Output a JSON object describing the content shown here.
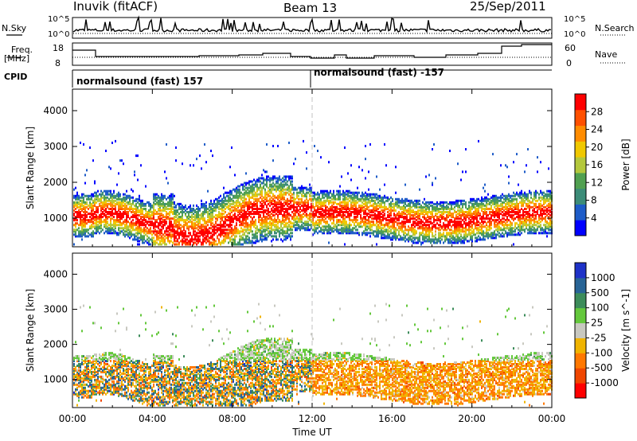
{
  "header": {
    "station": "Inuvik (fitACF)",
    "beam": "Beam 13",
    "date": "25/Sep/2011"
  },
  "panels": {
    "nsky": {
      "left_label": "N.Sky",
      "right_label": "N.Search",
      "left_ticks": [
        "10^5",
        "10^0"
      ],
      "right_ticks": [
        "10^5",
        "10^0"
      ]
    },
    "freq": {
      "left_label_1": "Freq.",
      "left_label_2": "[MHz]",
      "right_label": "Nave",
      "left_ticks": [
        "18",
        "8"
      ],
      "right_ticks": [
        "60",
        "0"
      ]
    },
    "cpid": {
      "label": "CPID",
      "segments": [
        "normalsound (fast) 157",
        "normalsound (fast) -157"
      ]
    }
  },
  "chart_data": [
    {
      "type": "heatmap",
      "title": "",
      "xlabel": "",
      "ylabel": "Slant Range [km]",
      "x_ticks": [
        "00:00",
        "04:00",
        "08:00",
        "12:00",
        "16:00",
        "20:00",
        "00:00"
      ],
      "y_ticks": [
        1000,
        2000,
        3000,
        4000
      ],
      "ylim": [
        200,
        4600
      ],
      "xlim_hours": [
        0,
        24
      ],
      "colorbar": {
        "label": "Power [dB]",
        "ticks": [
          4,
          8,
          12,
          16,
          20,
          24,
          28
        ],
        "range": [
          0,
          32
        ],
        "colors": [
          "#0000ff",
          "#1e5cc8",
          "#3c8c78",
          "#50a050",
          "#b4c83c",
          "#f0c800",
          "#ff8c00",
          "#ff5000",
          "#ff0000"
        ]
      },
      "description_hidden": false
    },
    {
      "type": "heatmap",
      "title": "",
      "xlabel": "Time UT",
      "ylabel": "Slant Range [km]",
      "x_ticks": [
        "00:00",
        "04:00",
        "08:00",
        "12:00",
        "16:00",
        "20:00",
        "00:00"
      ],
      "y_ticks": [
        1000,
        2000,
        3000,
        4000
      ],
      "ylim": [
        200,
        4600
      ],
      "xlim_hours": [
        0,
        24
      ],
      "colorbar": {
        "label": "Velocity [m s^-1]",
        "ticks": [
          "1000",
          "500",
          "100",
          "25",
          "-25",
          "-100",
          "-500",
          "-1000"
        ],
        "colors": [
          "#1e32c8",
          "#286496",
          "#3c8c5a",
          "#64c83c",
          "#c8c8c0",
          "#f0b400",
          "#ff7800",
          "#f04600",
          "#ff0000"
        ]
      }
    }
  ],
  "colors": {
    "frame": "#000000",
    "dashed_line": "#c0c0c0"
  }
}
